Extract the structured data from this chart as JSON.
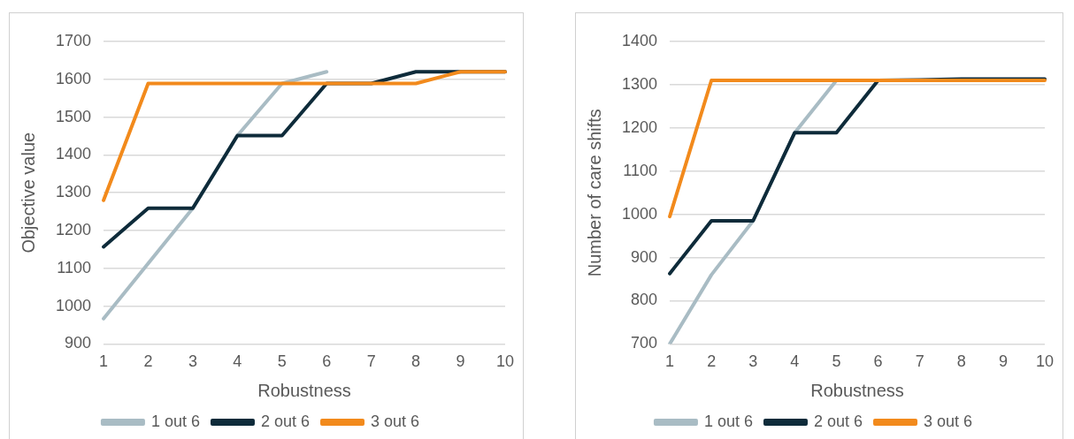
{
  "chart_data": [
    {
      "type": "line",
      "xlabel": "Robustness",
      "ylabel": "Objective value",
      "categories": [
        "1",
        "2",
        "3",
        "4",
        "5",
        "6",
        "7",
        "8",
        "9",
        "10"
      ],
      "series": [
        {
          "name": "1 out 6",
          "color": "#a9bcc4",
          "values": [
            967,
            1113,
            1259,
            1451,
            1589,
            1620,
            null,
            null,
            null,
            null
          ]
        },
        {
          "name": "2 out 6",
          "color": "#0e2b3a",
          "values": [
            1157,
            1259,
            1259,
            1451,
            1451,
            1589,
            1589,
            1620,
            1620,
            1620
          ]
        },
        {
          "name": "3 out 6",
          "color": "#f28a1c",
          "values": [
            1280,
            1589,
            1589,
            1589,
            1589,
            1589,
            1589,
            1589,
            1620,
            1620
          ]
        }
      ],
      "ylim": [
        900,
        1700
      ],
      "yticks": [
        900,
        1000,
        1100,
        1200,
        1300,
        1400,
        1500,
        1600,
        1700
      ],
      "grid": "y",
      "legend": "bottom",
      "marker": "none"
    },
    {
      "type": "line",
      "xlabel": "Robustness",
      "ylabel": "Number of care shifts",
      "categories": [
        "1",
        "2",
        "3",
        "4",
        "5",
        "6",
        "7",
        "8",
        "9",
        "10"
      ],
      "series": [
        {
          "name": "1 out 6",
          "color": "#a9bcc4",
          "values": [
            700,
            860,
            985,
            1189,
            1310,
            1310,
            null,
            null,
            null,
            null
          ]
        },
        {
          "name": "2 out 6",
          "color": "#0e2b3a",
          "values": [
            863,
            985,
            985,
            1189,
            1189,
            1310,
            1311,
            1313,
            1313,
            1313
          ]
        },
        {
          "name": "3 out 6",
          "color": "#f28a1c",
          "values": [
            995,
            1310,
            1310,
            1310,
            1310,
            1310,
            1310,
            1310,
            1310,
            1310
          ]
        }
      ],
      "ylim": [
        700,
        1400
      ],
      "yticks": [
        700,
        800,
        900,
        1000,
        1100,
        1200,
        1300,
        1400
      ],
      "grid": "y",
      "legend": "bottom",
      "marker": "none"
    }
  ]
}
